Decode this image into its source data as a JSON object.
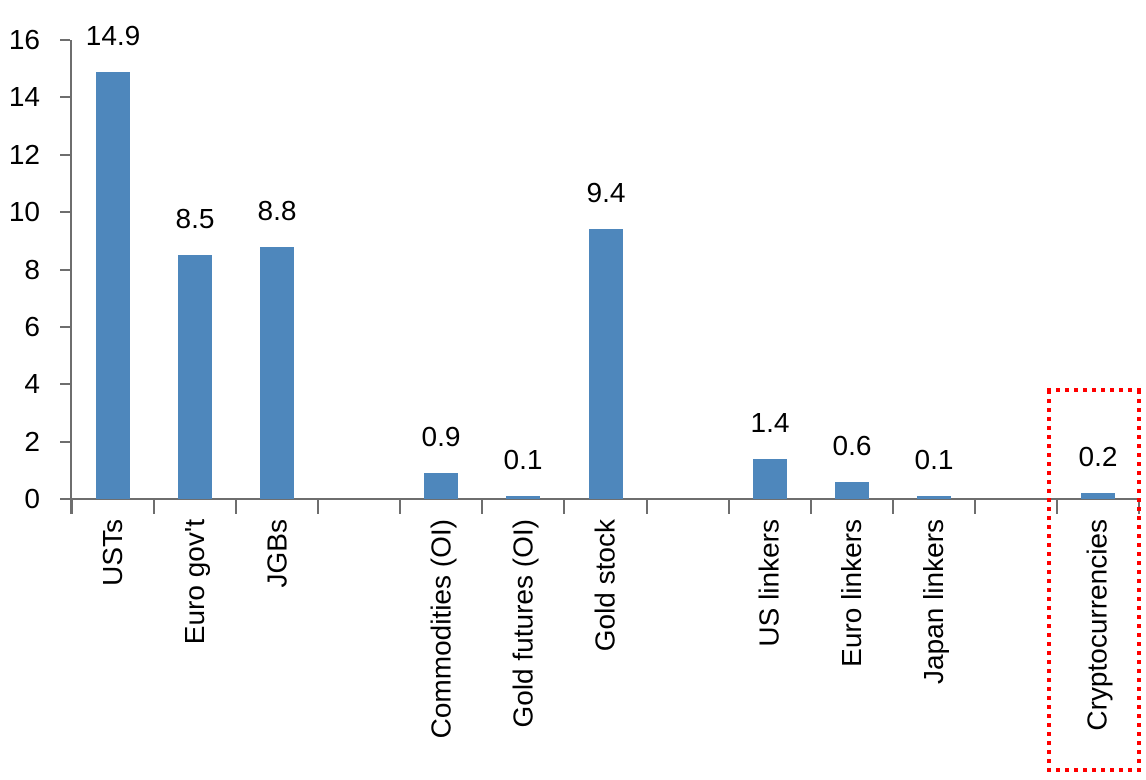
{
  "chart_data": {
    "type": "bar",
    "title": "",
    "xlabel": "",
    "ylabel": "",
    "categories": [
      "USTs",
      "Euro gov't",
      "JGBs",
      "Commodities (OI)",
      "Gold futures (OI)",
      "Gold stock",
      "US linkers",
      "Euro linkers",
      "Japan linkers",
      "Cryptocurrencies"
    ],
    "values": [
      14.9,
      8.5,
      8.8,
      0.9,
      0.1,
      9.4,
      1.4,
      0.6,
      0.1,
      0.2
    ],
    "value_labels": [
      "14.9",
      "8.5",
      "8.8",
      "0.9",
      "0.1",
      "9.4",
      "1.4",
      "0.6",
      "0.1",
      "0.2"
    ],
    "slots": [
      0,
      1,
      2,
      4,
      5,
      6,
      8,
      9,
      10,
      12
    ],
    "total_slots": 13,
    "ylim": [
      0,
      16
    ],
    "yticks": [
      "0",
      "2",
      "4",
      "6",
      "8",
      "10",
      "12",
      "14",
      "16"
    ],
    "grid": false,
    "legend": false,
    "bar_color": "#4E87BC",
    "axis_color": "#6E6E6E",
    "text_color": "#000000",
    "highlight_box": {
      "category": "Cryptocurrencies",
      "color": "#FF0000",
      "style": "dotted"
    }
  }
}
